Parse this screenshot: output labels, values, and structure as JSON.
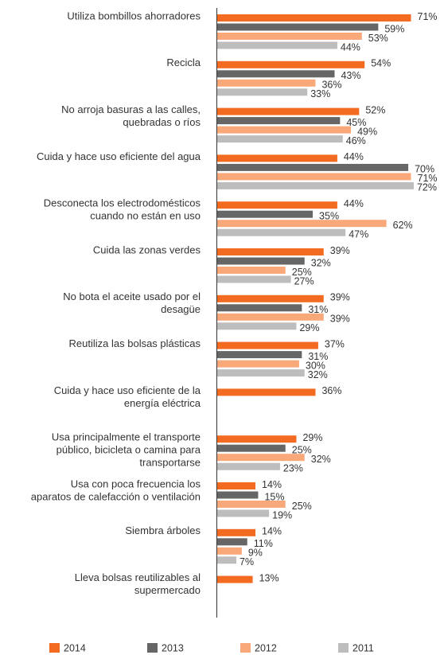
{
  "chart_data": {
    "type": "hbar",
    "categories": [
      [
        "Utiliza bombillos ahorradores"
      ],
      [
        "Recicla"
      ],
      [
        "No arroja basuras a las calles,",
        "quebradas o ríos"
      ],
      [
        "Cuida y hace uso eficiente del agua"
      ],
      [
        "Desconecta los electrodomésticos",
        "cuando no están en uso"
      ],
      [
        "Cuida las zonas verdes"
      ],
      [
        "No bota el aceite usado por el",
        "desagüe"
      ],
      [
        "Reutiliza las bolsas plásticas"
      ],
      [
        "Cuida y hace uso eficiente de la",
        "energía eléctrica"
      ],
      [
        "Usa principalmente el transporte",
        "público, bicicleta o camina para",
        "transportarse"
      ],
      [
        "Usa con poca frecuencia los",
        "aparatos de calefacción o ventilación"
      ],
      [
        "Siembra árboles"
      ],
      [
        "Lleva bolsas reutilizables al",
        "supermercado"
      ]
    ],
    "series": [
      {
        "name": "2014",
        "color": "#f26b21",
        "values": [
          71,
          54,
          52,
          44,
          44,
          39,
          39,
          37,
          36,
          29,
          14,
          14,
          13
        ],
        "value_labels": [
          "71%",
          "54%",
          "52%",
          "44%",
          "44%",
          "39%",
          "39%",
          "37%",
          "36%",
          "29%",
          "14%",
          "14%",
          "13%"
        ]
      },
      {
        "name": "2013",
        "color": "#666666",
        "values": [
          59,
          43,
          45,
          70,
          35,
          32,
          31,
          31,
          null,
          25,
          15,
          11,
          null
        ],
        "value_labels": [
          "59%",
          "43%",
          "45%",
          "70%",
          "35%",
          "32%",
          "31%",
          "31%",
          null,
          "25%",
          "15%",
          "11%",
          null
        ]
      },
      {
        "name": "2012",
        "color": "#f9a87a",
        "values": [
          53,
          36,
          49,
          71,
          62,
          25,
          39,
          30,
          null,
          32,
          25,
          9,
          null
        ],
        "value_labels": [
          "53%",
          "36%",
          "49%",
          "71%",
          "62%",
          "25%",
          "39%",
          "30%",
          null,
          "32%",
          "25%",
          "9%",
          null
        ]
      },
      {
        "name": "2011",
        "color": "#bdbdbd",
        "values": [
          44,
          33,
          46,
          72,
          47,
          27,
          29,
          32,
          null,
          23,
          19,
          7,
          null
        ],
        "value_labels": [
          "44%",
          "33%",
          "46%",
          "72%",
          "47%",
          "27%",
          "29%",
          "32%",
          null,
          "23%",
          "19%",
          "7%",
          null
        ]
      }
    ]
  }
}
